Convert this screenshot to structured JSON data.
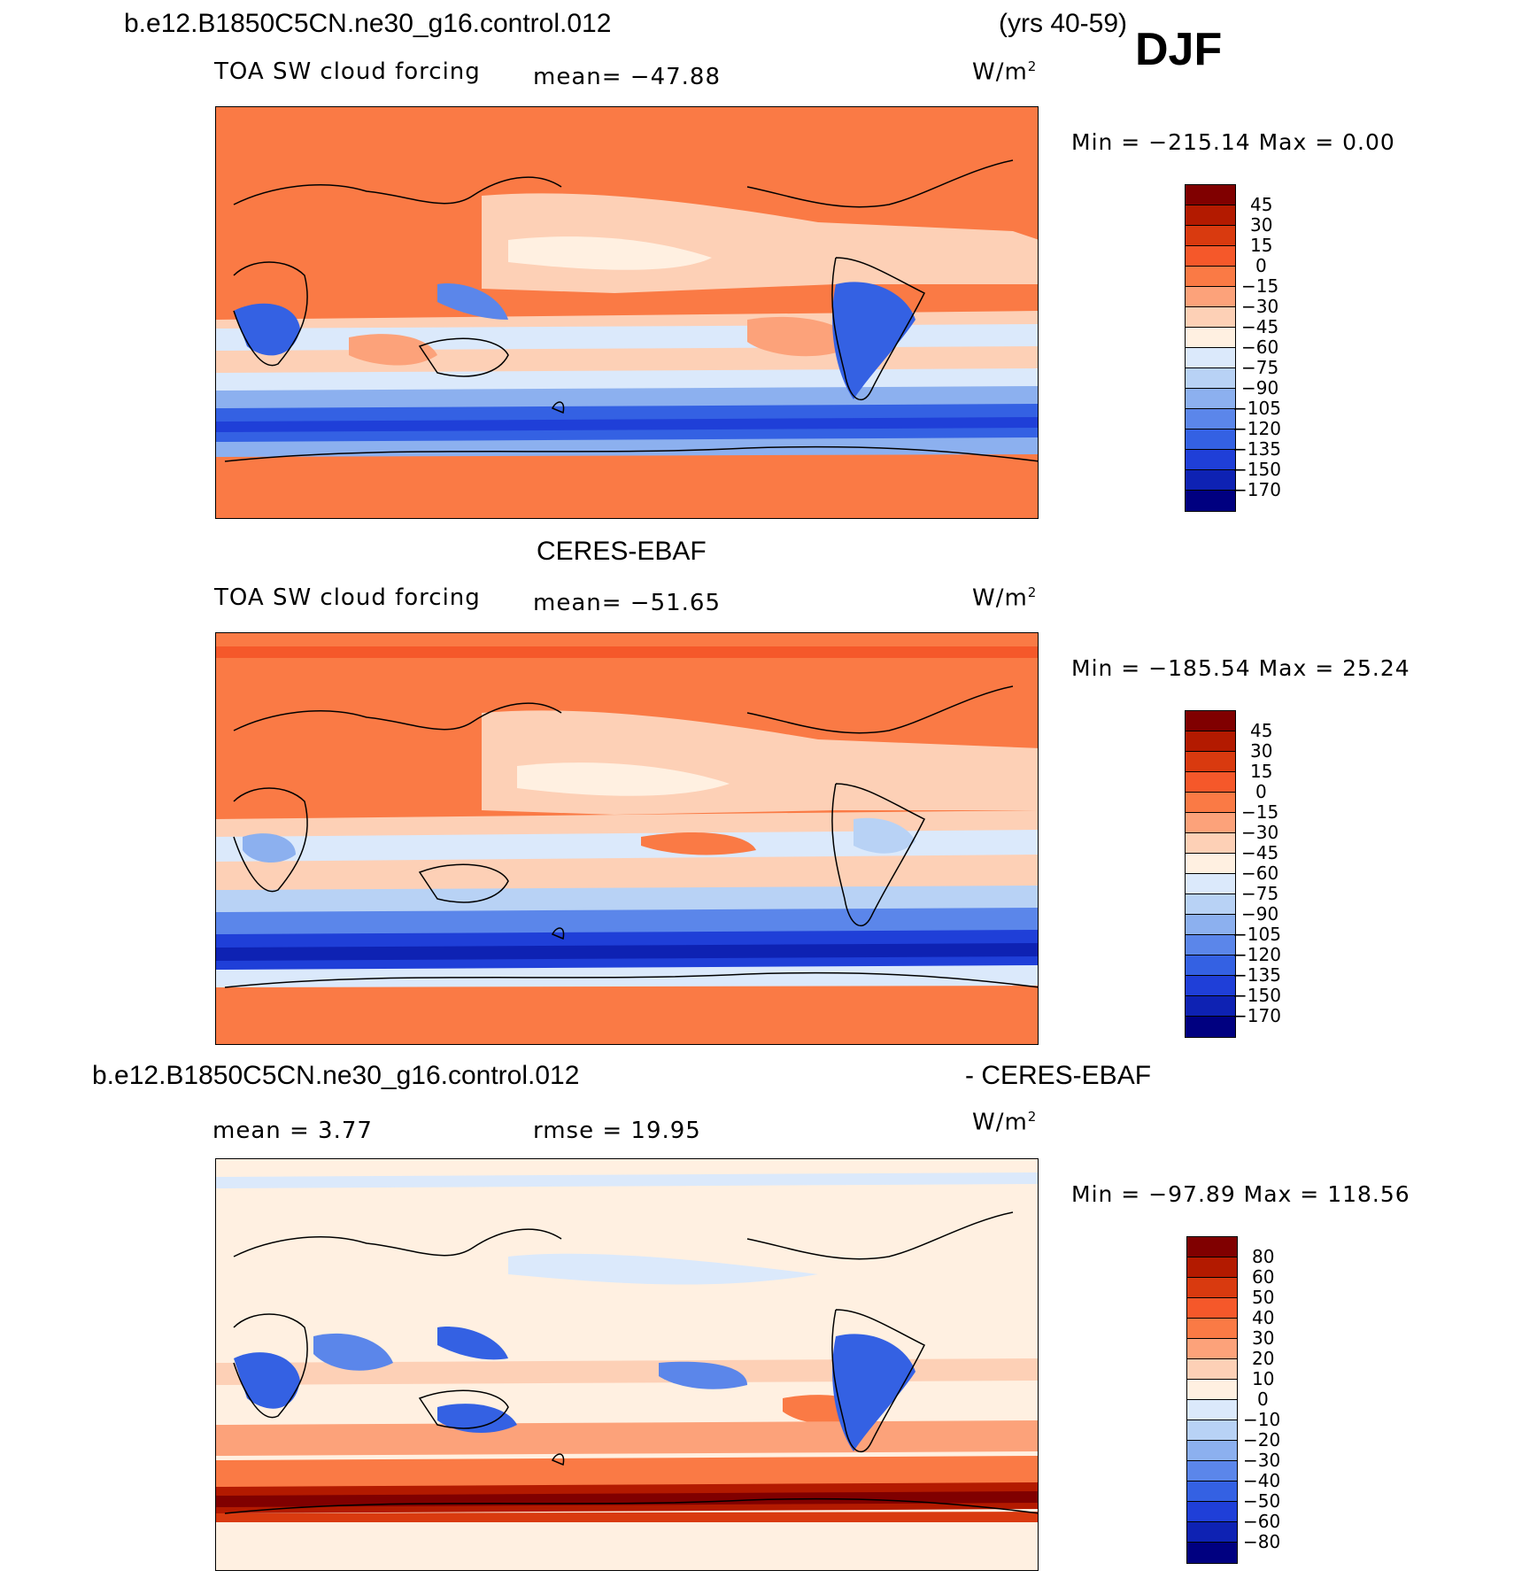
{
  "header": {
    "case": "b.e12.B1850C5CN.ne30_g16.control.012",
    "years": "(yrs 40-59)",
    "season": "DJF"
  },
  "panel1": {
    "variable": "TOA SW cloud forcing",
    "mean": "mean=  −47.88",
    "units": "W/m",
    "units_sup": "2",
    "minmax": "Min  =  −215.14  Max  =     0.00",
    "colorbar": [
      "45",
      "30",
      "15",
      "0",
      "−15",
      "−30",
      "−45",
      "−60",
      "−75",
      "−90",
      "−105",
      "−120",
      "−135",
      "−150",
      "−170"
    ]
  },
  "panel2": {
    "title": "CERES-EBAF",
    "variable": "TOA SW cloud forcing",
    "mean": "mean=  −51.65",
    "units": "W/m",
    "units_sup": "2",
    "minmax": "Min  =  −185.54  Max  =   25.24",
    "colorbar": [
      "45",
      "30",
      "15",
      "0",
      "−15",
      "−30",
      "−45",
      "−60",
      "−75",
      "−90",
      "−105",
      "−120",
      "−135",
      "−150",
      "−170"
    ]
  },
  "panel3": {
    "title_left": "b.e12.B1850C5CN.ne30_g16.control.012",
    "title_right": "- CERES-EBAF",
    "mean": "mean  =     3.77",
    "rmse": "rmse  =    19.95",
    "units": "W/m",
    "units_sup": "2",
    "minmax": "Min  =  −97.89  Max  =  118.56",
    "colorbar": [
      "80",
      "60",
      "50",
      "40",
      "30",
      "20",
      "10",
      "0",
      "−10",
      "−20",
      "−30",
      "−40",
      "−50",
      "−60",
      "−80"
    ]
  },
  "colors": {
    "scale": [
      "#800000",
      "#b31a00",
      "#d93a0f",
      "#f5582a",
      "#fa7a45",
      "#fca27a",
      "#fdd0b6",
      "#fff0e1",
      "#dbe9fb",
      "#b8d2f5",
      "#8cb0ef",
      "#5b86ea",
      "#3461e3",
      "#1f3fd8",
      "#0e22b3",
      "#000080"
    ]
  }
}
